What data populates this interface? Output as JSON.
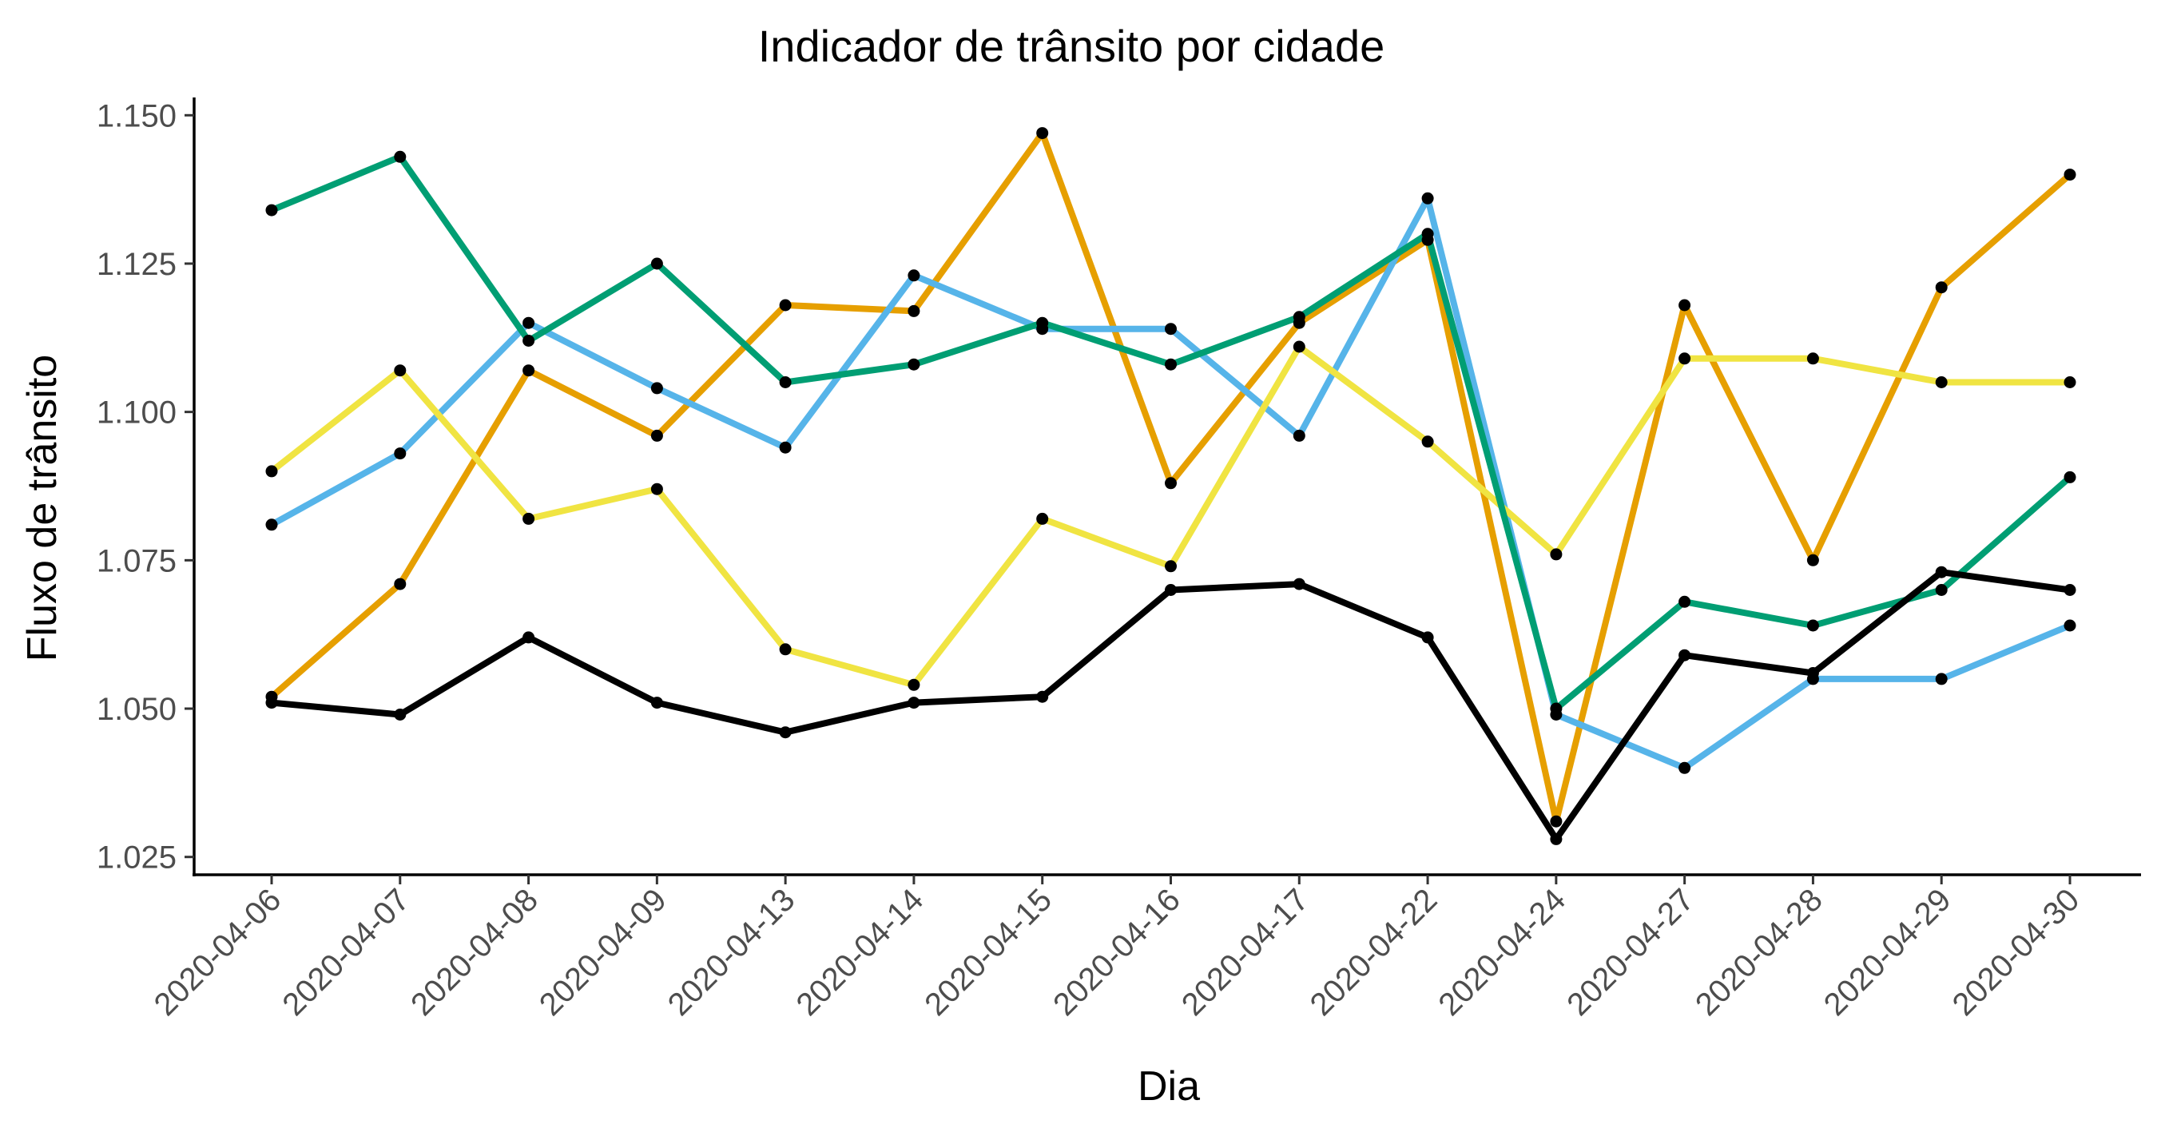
{
  "chart_data": {
    "type": "line",
    "title": "Indicador de trânsito por cidade",
    "xlabel": "Dia",
    "ylabel": "Fluxo de trânsito",
    "categories": [
      "2020-04-06",
      "2020-04-07",
      "2020-04-08",
      "2020-04-09",
      "2020-04-13",
      "2020-04-14",
      "2020-04-15",
      "2020-04-16",
      "2020-04-17",
      "2020-04-22",
      "2020-04-24",
      "2020-04-27",
      "2020-04-28",
      "2020-04-29",
      "2020-04-30"
    ],
    "ylim": [
      1.022,
      1.153
    ],
    "yticks": [
      1.025,
      1.05,
      1.075,
      1.1,
      1.125,
      1.15
    ],
    "ytick_labels": [
      "1.025",
      "1.050",
      "1.075",
      "1.100",
      "1.125",
      "1.150"
    ],
    "grid": false,
    "legend": "none",
    "point_color": "#000000",
    "series": [
      {
        "color": "#E69F00",
        "values": [
          1.052,
          1.071,
          1.107,
          1.096,
          1.118,
          1.117,
          1.147,
          1.088,
          1.115,
          1.129,
          1.031,
          1.118,
          1.075,
          1.121,
          1.14
        ]
      },
      {
        "color": "#56B4E9",
        "values": [
          1.081,
          1.093,
          1.115,
          1.104,
          1.094,
          1.123,
          1.114,
          1.114,
          1.096,
          1.136,
          1.049,
          1.04,
          1.055,
          1.055,
          1.064
        ]
      },
      {
        "color": "#F0E442",
        "values": [
          1.09,
          1.107,
          1.082,
          1.087,
          1.06,
          1.054,
          1.082,
          1.074,
          1.111,
          1.095,
          1.076,
          1.109,
          1.109,
          1.105,
          1.105
        ]
      },
      {
        "color": "#009E73",
        "values": [
          1.134,
          1.143,
          1.112,
          1.125,
          1.105,
          1.108,
          1.115,
          1.108,
          1.116,
          1.13,
          1.05,
          1.068,
          1.064,
          1.07,
          1.089
        ]
      },
      {
        "color": "#000000",
        "values": [
          1.051,
          1.049,
          1.062,
          1.051,
          1.046,
          1.051,
          1.052,
          1.07,
          1.071,
          1.062,
          1.028,
          1.059,
          1.056,
          1.073,
          1.07
        ]
      }
    ]
  }
}
